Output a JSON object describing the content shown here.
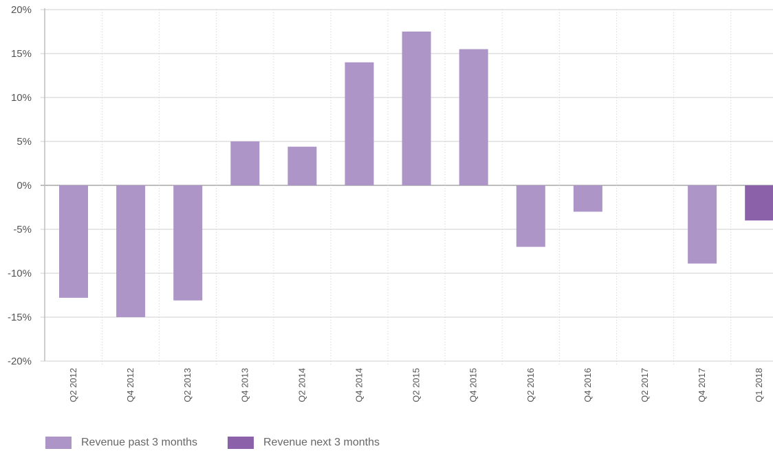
{
  "chart_data": {
    "type": "bar",
    "categories": [
      "Q2 2012",
      "Q4 2012",
      "Q2 2013",
      "Q4 2013",
      "Q2 2014",
      "Q4 2014",
      "Q2 2015",
      "Q4 2015",
      "Q2 2016",
      "Q4 2016",
      "Q2 2017",
      "Q4 2017",
      "Q1 2018"
    ],
    "series": [
      {
        "name": "Revenue past 3 months",
        "color": "#ad96c7",
        "values": [
          -12.8,
          -15.0,
          -13.1,
          5.0,
          4.4,
          14.0,
          17.5,
          15.5,
          -7.0,
          -3.0,
          0,
          -8.9,
          null
        ]
      },
      {
        "name": "Revenue next 3 months",
        "color": "#8b62aa",
        "values": [
          null,
          null,
          null,
          null,
          null,
          null,
          null,
          null,
          null,
          null,
          null,
          null,
          -4.0
        ]
      }
    ],
    "y_ticks": [
      "20%",
      "15%",
      "10%",
      "5%",
      "0%",
      "-5%",
      "-10%",
      "-15%",
      "-20%"
    ],
    "ylim": [
      -20,
      20
    ],
    "title": "",
    "xlabel": "",
    "ylabel": "",
    "grid": true,
    "legend_position": "bottom-left"
  }
}
